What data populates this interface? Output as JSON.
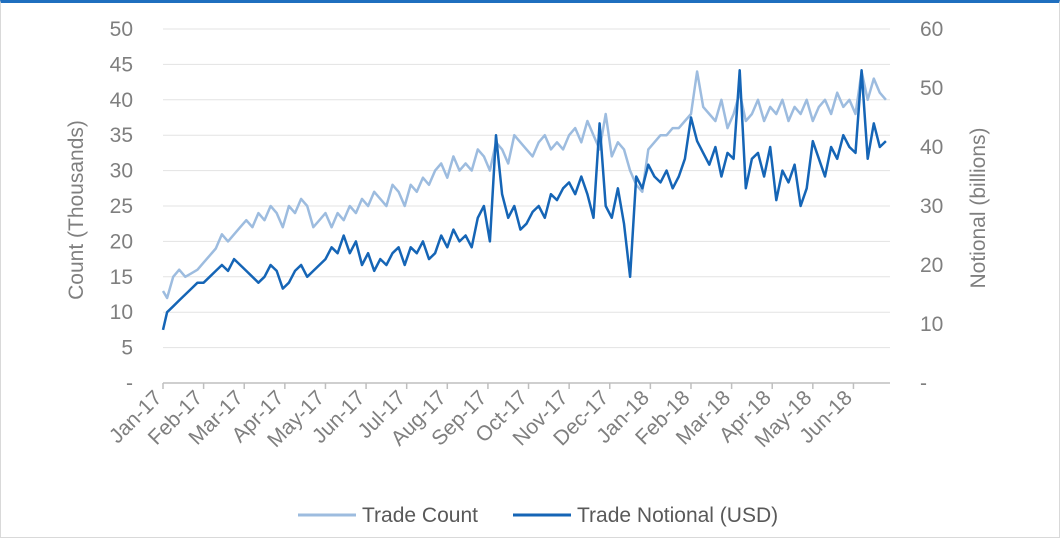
{
  "chart_data": {
    "type": "line",
    "title": "",
    "ylabel_left": "Count (Thousands)",
    "ylabel_right": "Notional (billions)",
    "ylim_left": [
      0,
      50
    ],
    "ylim_right": [
      0,
      60
    ],
    "y_ticks_left": [
      "-",
      "5",
      "10",
      "15",
      "20",
      "25",
      "30",
      "35",
      "40",
      "45",
      "50"
    ],
    "y_ticks_right": [
      "-",
      "10",
      "20",
      "30",
      "40",
      "50",
      "60"
    ],
    "x_ticks": [
      "Jan-17",
      "Feb-17",
      "Mar-17",
      "Apr-17",
      "May-17",
      "Jun-17",
      "Jul-17",
      "Aug-17",
      "Sep-17",
      "Oct-17",
      "Nov-17",
      "Dec-17",
      "Jan-18",
      "Feb-18",
      "Mar-18",
      "Apr-18",
      "May-18",
      "Jun-18"
    ],
    "grid": true,
    "legend_position": "bottom",
    "series": [
      {
        "name": "Trade Count",
        "axis": "left",
        "color": "#9dbcdf",
        "x_months": [
          0,
          0.1,
          0.25,
          0.4,
          0.55,
          0.7,
          0.85,
          1.0,
          1.15,
          1.3,
          1.45,
          1.6,
          1.75,
          1.9,
          2.05,
          2.2,
          2.35,
          2.5,
          2.65,
          2.8,
          2.95,
          3.1,
          3.25,
          3.4,
          3.55,
          3.7,
          3.85,
          4.0,
          4.15,
          4.3,
          4.45,
          4.6,
          4.75,
          4.9,
          5.05,
          5.2,
          5.35,
          5.5,
          5.65,
          5.8,
          5.95,
          6.1,
          6.25,
          6.4,
          6.55,
          6.7,
          6.85,
          7.0,
          7.15,
          7.3,
          7.45,
          7.6,
          7.75,
          7.9,
          8.05,
          8.2,
          8.35,
          8.5,
          8.65,
          8.8,
          8.95,
          9.1,
          9.25,
          9.4,
          9.55,
          9.7,
          9.85,
          10.0,
          10.15,
          10.3,
          10.45,
          10.6,
          10.75,
          10.9,
          11.05,
          11.2,
          11.35,
          11.5,
          11.65,
          11.8,
          11.95,
          12.1,
          12.25,
          12.4,
          12.55,
          12.7,
          12.85,
          13.0,
          13.15,
          13.3,
          13.45,
          13.6,
          13.75,
          13.9,
          14.05,
          14.2,
          14.35,
          14.5,
          14.65,
          14.8,
          14.95,
          15.1,
          15.25,
          15.4,
          15.55,
          15.7,
          15.85,
          16.0,
          16.15,
          16.3,
          16.45,
          16.6,
          16.75,
          16.9,
          17.05,
          17.2,
          17.35,
          17.5,
          17.65,
          17.8
        ],
        "values": [
          13,
          12,
          15,
          16,
          15,
          15.5,
          16,
          17,
          18,
          19,
          21,
          20,
          21,
          22,
          23,
          22,
          24,
          23,
          25,
          24,
          22,
          25,
          24,
          26,
          25,
          22,
          23,
          24,
          22,
          24,
          23,
          25,
          24,
          26,
          25,
          27,
          26,
          25,
          28,
          27,
          25,
          28,
          27,
          29,
          28,
          30,
          31,
          29,
          32,
          30,
          31,
          30,
          33,
          32,
          30,
          34,
          33,
          31,
          35,
          34,
          33,
          32,
          34,
          35,
          33,
          34,
          33,
          35,
          36,
          34,
          37,
          35,
          33,
          38,
          32,
          34,
          33,
          30,
          28,
          27,
          33,
          34,
          35,
          35,
          36,
          36,
          37,
          38,
          44,
          39,
          38,
          37,
          40,
          36,
          38,
          41,
          37,
          38,
          40,
          37,
          39,
          38,
          40,
          37,
          39,
          38,
          40,
          37,
          39,
          40,
          38,
          41,
          39,
          40,
          38,
          44,
          40,
          43,
          41,
          40
        ],
        "stroke_width": 2.5
      },
      {
        "name": "Trade Notional (USD)",
        "axis": "right",
        "color": "#1565b6",
        "x_months": [
          0,
          0.1,
          0.25,
          0.4,
          0.55,
          0.7,
          0.85,
          1.0,
          1.15,
          1.3,
          1.45,
          1.6,
          1.75,
          1.9,
          2.05,
          2.2,
          2.35,
          2.5,
          2.65,
          2.8,
          2.95,
          3.1,
          3.25,
          3.4,
          3.55,
          3.7,
          3.85,
          4.0,
          4.15,
          4.3,
          4.45,
          4.6,
          4.75,
          4.9,
          5.05,
          5.2,
          5.35,
          5.5,
          5.65,
          5.8,
          5.95,
          6.1,
          6.25,
          6.4,
          6.55,
          6.7,
          6.85,
          7.0,
          7.15,
          7.3,
          7.45,
          7.6,
          7.75,
          7.9,
          8.05,
          8.2,
          8.35,
          8.5,
          8.65,
          8.8,
          8.95,
          9.1,
          9.25,
          9.4,
          9.55,
          9.7,
          9.85,
          10.0,
          10.15,
          10.3,
          10.45,
          10.6,
          10.75,
          10.9,
          11.05,
          11.2,
          11.35,
          11.5,
          11.65,
          11.8,
          11.95,
          12.1,
          12.25,
          12.4,
          12.55,
          12.7,
          12.85,
          13.0,
          13.15,
          13.3,
          13.45,
          13.6,
          13.75,
          13.9,
          14.05,
          14.2,
          14.35,
          14.5,
          14.65,
          14.8,
          14.95,
          15.1,
          15.25,
          15.4,
          15.55,
          15.7,
          15.85,
          16.0,
          16.15,
          16.3,
          16.45,
          16.6,
          16.75,
          16.9,
          17.05,
          17.2,
          17.35,
          17.5,
          17.65,
          17.8
        ],
        "values": [
          9,
          12,
          13,
          14,
          15,
          16,
          17,
          17,
          18,
          19,
          20,
          19,
          21,
          20,
          19,
          18,
          17,
          18,
          20,
          19,
          16,
          17,
          19,
          20,
          18,
          19,
          20,
          21,
          23,
          22,
          25,
          22,
          24,
          20,
          22,
          19,
          21,
          20,
          22,
          23,
          20,
          23,
          22,
          24,
          21,
          22,
          25,
          23,
          26,
          24,
          25,
          23,
          28,
          30,
          24,
          42,
          32,
          28,
          30,
          26,
          27,
          29,
          30,
          28,
          32,
          31,
          33,
          34,
          32,
          35,
          32,
          28,
          44,
          30,
          28,
          33,
          27,
          18,
          35,
          33,
          37,
          35,
          34,
          36,
          33,
          35,
          38,
          45,
          41,
          39,
          37,
          40,
          35,
          39,
          38,
          53,
          33,
          38,
          39,
          35,
          40,
          31,
          36,
          34,
          37,
          30,
          33,
          41,
          38,
          35,
          40,
          38,
          42,
          40,
          39,
          53,
          38,
          44,
          40,
          41
        ],
        "stroke_width": 2.5
      }
    ]
  }
}
